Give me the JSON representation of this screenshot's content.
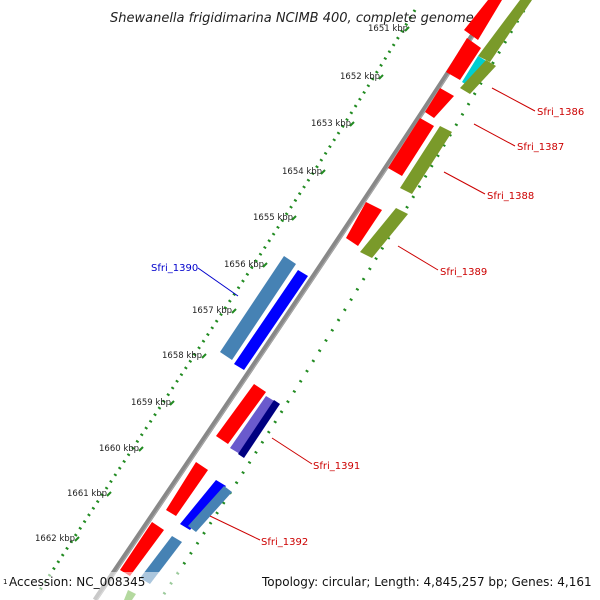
{
  "title": "Shewanella frigidimarina NCIMB 400, complete genome",
  "accession_label": "Accession: NC_008345",
  "footer_tiny": "1",
  "summary": "Topology: circular; Length: 4,845,257 bp; Genes: 4,161",
  "kbp_labels": [
    "1651 kbp",
    "1652 kbp",
    "1653 kbp",
    "1654 kbp",
    "1655 kbp",
    "1656 kbp",
    "1657 kbp",
    "1658 kbp",
    "1659 kbp",
    "1660 kbp",
    "1661 kbp",
    "1662 kbp"
  ],
  "genes": {
    "sfri_1386": "Sfri_1386",
    "sfri_1387": "Sfri_1387",
    "sfri_1388": "Sfri_1388",
    "sfri_1389": "Sfri_1389",
    "sfri_1390": "Sfri_1390",
    "sfri_1391": "Sfri_1391",
    "sfri_1392": "Sfri_1392"
  },
  "colors": {
    "backbone": "#888888",
    "tick": "#228b22",
    "cds_forward": "#ff0000",
    "gene_olive": "#7a9a2a",
    "gene_steelblue": "#4682b4",
    "gene_blue": "#0000ff",
    "gene_navy": "#000080",
    "gene_cyan": "#00ced1",
    "label_red": "#cc0000",
    "label_blue": "#0000cc"
  }
}
